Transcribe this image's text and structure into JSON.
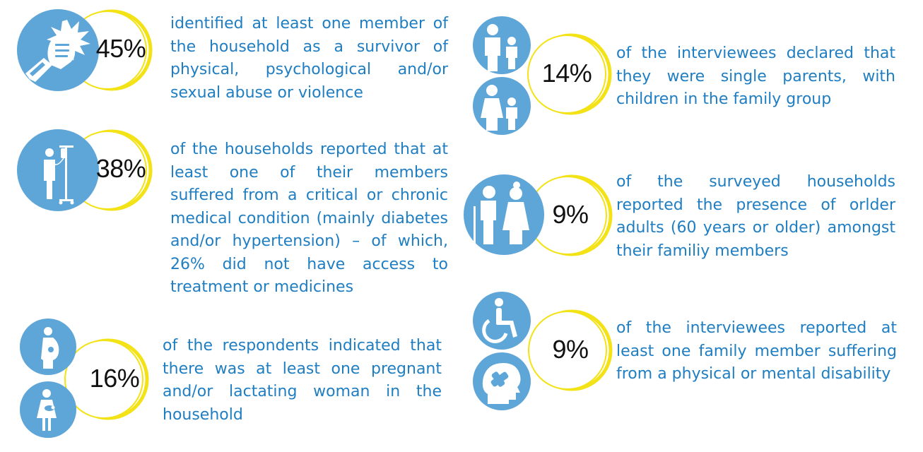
{
  "colors": {
    "circle_blue": "#5ea5d8",
    "ring_yellow": "#f2e216",
    "text_blue": "#1f7ec2",
    "percent_black": "#111111"
  },
  "stats": [
    {
      "percent": "45%",
      "icon": "fist-icon",
      "text": "identified at least one member of the household as a survivor of physical, psychological and/or sexual abuse or violence"
    },
    {
      "percent": "38%",
      "icon": "patient-iv-drip-icon",
      "text": "of the households reported that at least one of their members suffered from a critical or chronic medical condition (mainly diabetes and/or hypertension) – of which, 26% did not have access to treatment or medicines"
    },
    {
      "percent": "16%",
      "icons": [
        "pregnant-woman-icon",
        "lactating-mother-icon"
      ],
      "text": "of the respondents indicated that there was at least one pregnant and/or lactating woman in the household"
    },
    {
      "percent": "14%",
      "icons": [
        "father-and-child-icon",
        "mother-and-child-icon"
      ],
      "text": "of the interviewees declared that they were single parents, with children in the family group"
    },
    {
      "percent": "9%",
      "icon": "elderly-couple-icon",
      "text": "of the surveyed households reported the presence of orlder adults (60 years or older) amongst their familiy members"
    },
    {
      "percent": "9%",
      "icons": [
        "wheelchair-icon",
        "brain-bandage-icon"
      ],
      "text": "of the interviewees reported at least one family member suffering from a physical or mental disability"
    }
  ]
}
